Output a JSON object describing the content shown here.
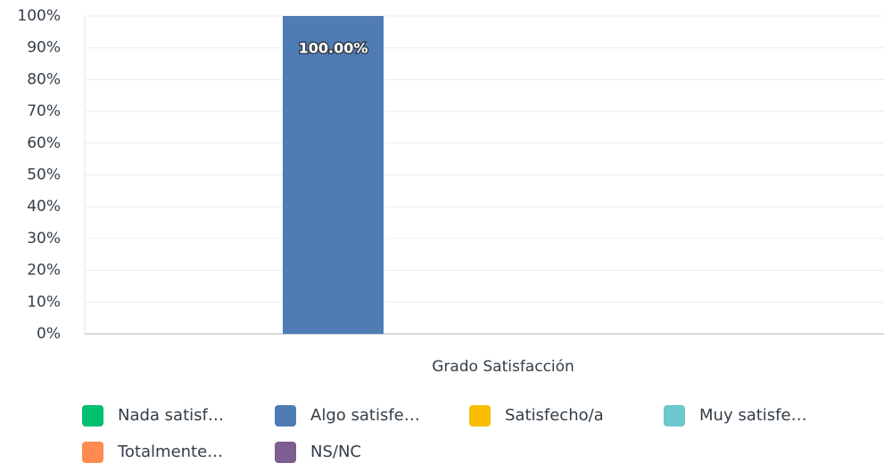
{
  "chart_data": {
    "type": "bar",
    "categories": [
      "Grado Satisfacción"
    ],
    "series": [
      {
        "name": "Nada satisf…",
        "color": "#00bf6f",
        "values": [
          0
        ]
      },
      {
        "name": "Algo satisfe…",
        "color": "#507cb6",
        "values": [
          100
        ],
        "value_labels": [
          "100.00%"
        ]
      },
      {
        "name": "Satisfecho/a",
        "color": "#f9be00",
        "values": [
          0
        ]
      },
      {
        "name": "Muy satisfe…",
        "color": "#6bc8cd",
        "values": [
          0
        ]
      },
      {
        "name": "Totalmente…",
        "color": "#ff8b4f",
        "values": [
          0
        ]
      },
      {
        "name": "NS/NC",
        "color": "#7d5e90",
        "values": [
          0
        ]
      }
    ],
    "ylim": [
      0,
      100
    ],
    "yticks": [
      {
        "value": 0,
        "label": "0%"
      },
      {
        "value": 10,
        "label": "10%"
      },
      {
        "value": 20,
        "label": "20%"
      },
      {
        "value": 30,
        "label": "30%"
      },
      {
        "value": 40,
        "label": "40%"
      },
      {
        "value": 50,
        "label": "50%"
      },
      {
        "value": 60,
        "label": "60%"
      },
      {
        "value": 70,
        "label": "70%"
      },
      {
        "value": 80,
        "label": "80%"
      },
      {
        "value": 90,
        "label": "90%"
      },
      {
        "value": 100,
        "label": "100%"
      }
    ],
    "grid": true
  }
}
